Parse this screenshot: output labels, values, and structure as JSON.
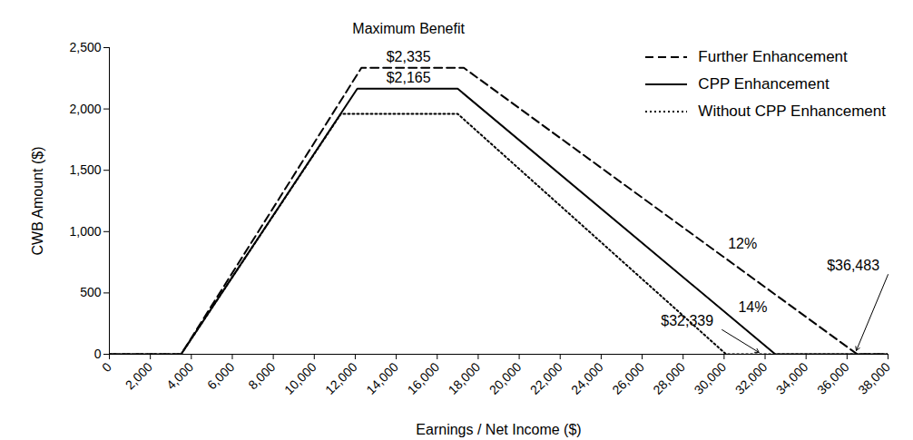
{
  "chart_data": {
    "type": "line",
    "xlabel": "Earnings / Net Income ($)",
    "ylabel": "CWB Amount ($)",
    "xlim": [
      0,
      38000
    ],
    "ylim": [
      0,
      2500
    ],
    "xticks": [
      0,
      {
        "value": 2000,
        "label": "2,000"
      },
      {
        "value": 4000,
        "label": "4,000"
      },
      {
        "value": 6000,
        "label": "6,000"
      },
      {
        "value": 8000,
        "label": "8,000"
      },
      {
        "value": 10000,
        "label": "10,000"
      },
      {
        "value": 12000,
        "label": "12,000"
      },
      {
        "value": 14000,
        "label": "14,000"
      },
      {
        "value": 16000,
        "label": "16,000"
      },
      {
        "value": 18000,
        "label": "18,000"
      },
      {
        "value": 20000,
        "label": "20,000"
      },
      {
        "value": 22000,
        "label": "22,000"
      },
      {
        "value": 24000,
        "label": "24,000"
      },
      {
        "value": 26000,
        "label": "26,000"
      },
      {
        "value": 28000,
        "label": "28,000"
      },
      {
        "value": 30000,
        "label": "30,000"
      },
      {
        "value": 32000,
        "label": "32,000"
      },
      {
        "value": 34000,
        "label": "34,000"
      },
      {
        "value": 36000,
        "label": "36,000"
      },
      {
        "value": 38000,
        "label": "38,000"
      }
    ],
    "yticks": [
      0,
      500,
      {
        "value": 1000,
        "label": "1,000"
      },
      {
        "value": 1500,
        "label": "1,500"
      },
      {
        "value": 2000,
        "label": "2,000"
      },
      {
        "value": 2500,
        "label": "2,500"
      }
    ],
    "grid": false,
    "legend": "top-right",
    "series": [
      {
        "name": "Further Enhancement",
        "color": "#000000",
        "line_style": "dashed",
        "x": [
          0,
          3500,
          12300,
          17300,
          36500,
          38000
        ],
        "values": [
          0,
          0,
          2335,
          2335,
          0,
          0
        ]
      },
      {
        "name": "CPP Enhancement",
        "color": "#000000",
        "line_style": "solid",
        "x": [
          0,
          3500,
          12100,
          17000,
          32500,
          38000
        ],
        "values": [
          0,
          0,
          2165,
          2165,
          0,
          0
        ]
      },
      {
        "name": "Without CPP Enhancement",
        "color": "#000000",
        "line_style": "dotted",
        "x": [
          0,
          3500,
          11300,
          17000,
          30100,
          38000
        ],
        "values": [
          0,
          0,
          1960,
          1960,
          0,
          0
        ]
      }
    ],
    "annotations": [
      {
        "text": "Maximum Benefit",
        "x": 14600,
        "y": 2650
      },
      {
        "text": "$2,335",
        "x": 14600,
        "y": 2420
      },
      {
        "text": "$2,165",
        "x": 14600,
        "y": 2250
      },
      {
        "text": "12%",
        "x": 30900,
        "y": 900
      },
      {
        "text": "14%",
        "x": 31400,
        "y": 380
      },
      {
        "text": "$32,339",
        "x": 28200,
        "y": 270,
        "arrow_to": [
          31700,
          15
        ]
      },
      {
        "text": "$36,483",
        "x": 36300,
        "y": 720,
        "arrow_to": [
          36450,
          30
        ]
      }
    ]
  }
}
